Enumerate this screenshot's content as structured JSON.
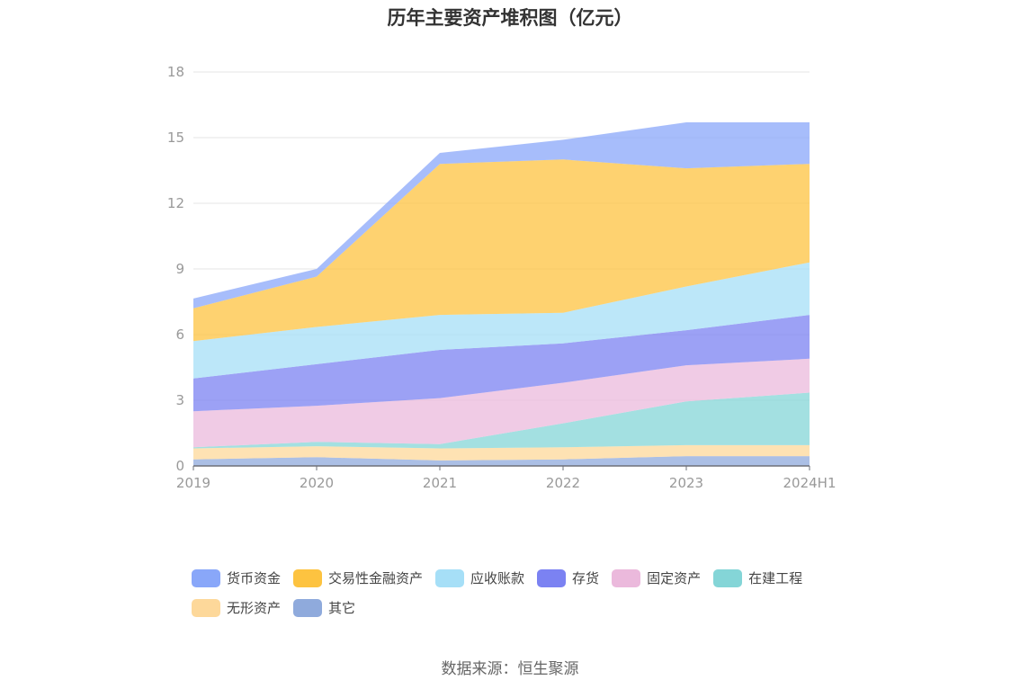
{
  "chart_data": {
    "type": "area",
    "stacked": true,
    "title": "历年主要资产堆积图（亿元）",
    "categories": [
      "2019",
      "2020",
      "2021",
      "2022",
      "2023",
      "2024H1"
    ],
    "ylim": [
      0,
      18
    ],
    "yticks": [
      0,
      3,
      6,
      9,
      12,
      15,
      18
    ],
    "grid": true,
    "legend_position": "bottom",
    "series": [
      {
        "name": "其它",
        "color": "#8faadc",
        "values": [
          0.3,
          0.4,
          0.25,
          0.3,
          0.45,
          0.45
        ]
      },
      {
        "name": "无形资产",
        "color": "#fdd89a",
        "values": [
          0.5,
          0.5,
          0.55,
          0.55,
          0.5,
          0.5
        ]
      },
      {
        "name": "在建工程",
        "color": "#84d5d7",
        "values": [
          0.05,
          0.2,
          0.2,
          1.1,
          2.0,
          2.4
        ]
      },
      {
        "name": "固定资产",
        "color": "#ebb9dc",
        "values": [
          1.65,
          1.65,
          2.1,
          1.85,
          1.65,
          1.55
        ]
      },
      {
        "name": "存货",
        "color": "#7b82f2",
        "values": [
          1.5,
          1.9,
          2.2,
          1.8,
          1.6,
          2.0
        ]
      },
      {
        "name": "应收账款",
        "color": "#a6dff7",
        "values": [
          1.7,
          1.7,
          1.6,
          1.4,
          2.0,
          2.4
        ]
      },
      {
        "name": "交易性金融资产",
        "color": "#fdc340",
        "values": [
          1.5,
          2.3,
          6.9,
          7.0,
          5.4,
          4.5
        ]
      },
      {
        "name": "货币资金",
        "color": "#89a7f9",
        "values": [
          0.45,
          0.35,
          0.5,
          0.9,
          2.1,
          1.9
        ]
      }
    ]
  },
  "legend": [
    {
      "label": "货币资金",
      "color": "#89a7f9"
    },
    {
      "label": "交易性金融资产",
      "color": "#fdc340"
    },
    {
      "label": "应收账款",
      "color": "#a6dff7"
    },
    {
      "label": "存货",
      "color": "#7b82f2"
    },
    {
      "label": "固定资产",
      "color": "#ebb9dc"
    },
    {
      "label": "在建工程",
      "color": "#84d5d7"
    },
    {
      "label": "无形资产",
      "color": "#fdd89a"
    },
    {
      "label": "其它",
      "color": "#8faadc"
    }
  ],
  "source": "数据来源：恒生聚源"
}
